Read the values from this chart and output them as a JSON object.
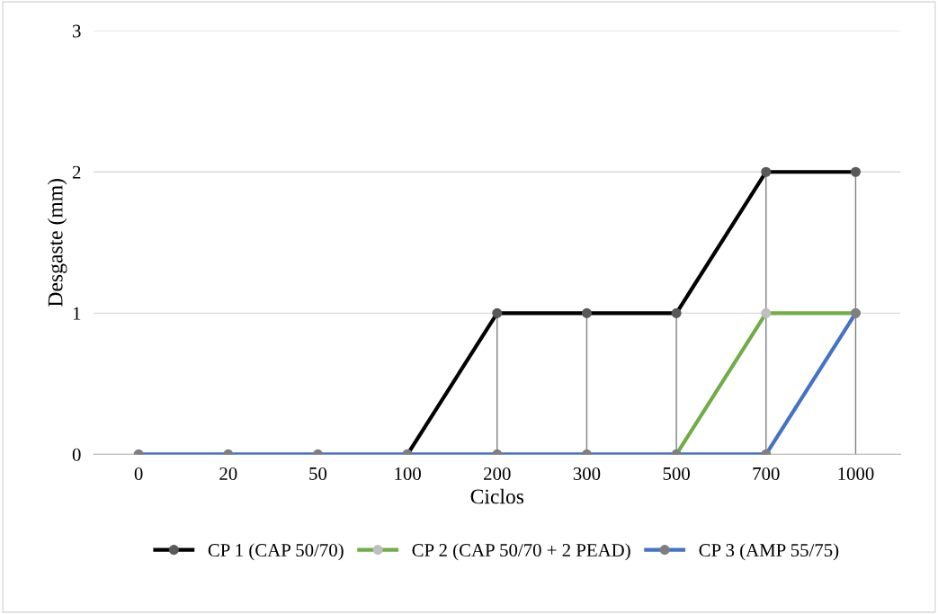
{
  "chart_data": {
    "type": "line",
    "xlabel": "Ciclos",
    "ylabel": "Desgaste (mm)",
    "categories": [
      "0",
      "20",
      "50",
      "100",
      "200",
      "300",
      "500",
      "700",
      "1000"
    ],
    "series": [
      {
        "name": "CP 1 (CAP 50/70)",
        "color": "#000000",
        "values": [
          null,
          null,
          null,
          0,
          1,
          1,
          1,
          2,
          2
        ],
        "errors": [
          null,
          null,
          null,
          null,
          [
            0,
            1
          ],
          [
            0,
            1
          ],
          [
            0,
            1
          ],
          [
            0,
            2
          ],
          [
            0,
            2
          ]
        ]
      },
      {
        "name": "CP 2 (CAP 50/70 + 2 PEAD)",
        "color": "#70ad47",
        "values": [
          null,
          null,
          null,
          null,
          null,
          null,
          0,
          1,
          1
        ]
      },
      {
        "name": "CP 3 (AMP 55/75)",
        "color": "#4472c4",
        "values": [
          0,
          0,
          0,
          0,
          0,
          0,
          0,
          0,
          1
        ]
      }
    ],
    "ylim": [
      0,
      3
    ],
    "yticks": [
      0,
      1,
      2,
      3
    ],
    "grid": "y",
    "legend": "bottom",
    "marker": "circle",
    "line_style": "solid"
  }
}
